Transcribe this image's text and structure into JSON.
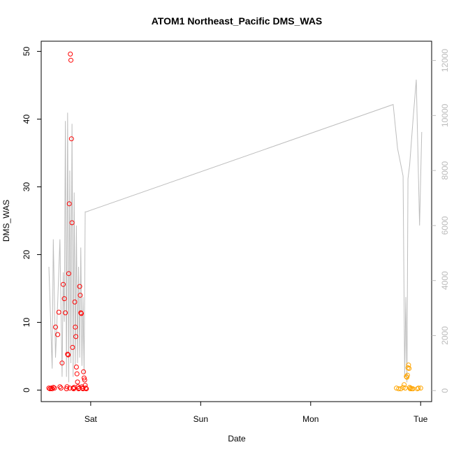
{
  "chart_data": {
    "type": "scatter",
    "title": "ATOM1 Northeast_Pacific DMS_WAS",
    "xlabel": "Date",
    "ylabel": "DMS_WAS",
    "x_ticks": [
      {
        "day": 1,
        "label": "Sat"
      },
      {
        "day": 2,
        "label": "Sun"
      },
      {
        "day": 3,
        "label": "Mon"
      },
      {
        "day": 4,
        "label": "Tue"
      }
    ],
    "xlim": [
      0.55,
      4.1
    ],
    "ylim": [
      -1.7,
      51.5
    ],
    "y_ticks": [
      0,
      10,
      20,
      30,
      40,
      50
    ],
    "y2lim": [
      -400,
      12700
    ],
    "y2_ticks": [
      0,
      2000,
      4000,
      6000,
      8000,
      10000,
      12000
    ],
    "colors": {
      "group1": "#ff0000",
      "group2": "#ffa500",
      "secondary": "#bdbdbd"
    },
    "series": [
      {
        "color": "#ff0000",
        "x": [
          0.62,
          0.63,
          0.64,
          0.65,
          0.66,
          0.67,
          0.68,
          0.7,
          0.71,
          0.72,
          0.73,
          0.74,
          0.75,
          0.76,
          0.77,
          0.78,
          0.785,
          0.79,
          0.795,
          0.8,
          0.805,
          0.81,
          0.815,
          0.82,
          0.825,
          0.83,
          0.835,
          0.84,
          0.845,
          0.85,
          0.855,
          0.86,
          0.865,
          0.87,
          0.875,
          0.88,
          0.885,
          0.89,
          0.895,
          0.9,
          0.905,
          0.91,
          0.915,
          0.92,
          0.925,
          0.93,
          0.935,
          0.94,
          0.945,
          0.95,
          0.955,
          0.96
        ],
        "y": [
          0.3,
          0.2,
          0.3,
          0.2,
          0.4,
          0.3,
          9.3,
          8.2,
          11.5,
          0.5,
          0.3,
          4.0,
          15.6,
          13.5,
          11.4,
          0.2,
          0.5,
          5.3,
          5.2,
          17.2,
          27.5,
          0.3,
          49.6,
          48.7,
          37.1,
          24.7,
          6.3,
          0.3,
          0.2,
          0.4,
          13.0,
          9.3,
          7.9,
          3.4,
          2.4,
          1.2,
          0.5,
          0.2,
          0.3,
          15.3,
          14.0,
          11.4,
          11.3,
          0.5,
          0.3,
          0.2,
          2.7,
          1.8,
          1.5,
          0.7,
          0.3,
          0.2
        ]
      },
      {
        "color": "#ffa500",
        "x": [
          3.78,
          3.8,
          3.82,
          3.84,
          3.85,
          3.86,
          3.87,
          3.875,
          3.88,
          3.885,
          3.89,
          3.895,
          3.9,
          3.905,
          3.91,
          3.92,
          3.93,
          3.97,
          3.98,
          4.0
        ],
        "y": [
          0.3,
          0.2,
          0.2,
          0.4,
          0.8,
          0.3,
          2.0,
          1.9,
          2.2,
          3.3,
          3.7,
          3.2,
          0.4,
          0.2,
          0.3,
          0.2,
          0.2,
          0.2,
          0.3,
          0.3
        ]
      }
    ],
    "secondary_line": {
      "color": "#bdbdbd",
      "x": [
        0.62,
        0.65,
        0.66,
        0.68,
        0.7,
        0.72,
        0.74,
        0.75,
        0.76,
        0.77,
        0.78,
        0.79,
        0.8,
        0.81,
        0.82,
        0.83,
        0.84,
        0.85,
        0.86,
        0.87,
        0.88,
        0.89,
        0.9,
        0.91,
        0.92,
        0.93,
        0.94,
        0.95,
        0.96,
        3.75,
        3.79,
        3.84,
        3.855,
        3.865,
        3.875,
        3.885,
        3.9,
        3.93,
        3.96,
        3.99,
        4.01
      ],
      "y": [
        4500,
        800,
        5500,
        1200,
        3200,
        5500,
        500,
        4300,
        2500,
        9800,
        500,
        10100,
        300,
        8000,
        1000,
        9700,
        500,
        7200,
        900,
        6000,
        1000,
        4500,
        1200,
        5200,
        900,
        3400,
        600,
        6500,
        6500,
        10400,
        8800,
        7800,
        500,
        3400,
        300,
        7700,
        8200,
        9800,
        11300,
        6000,
        9400
      ]
    }
  }
}
